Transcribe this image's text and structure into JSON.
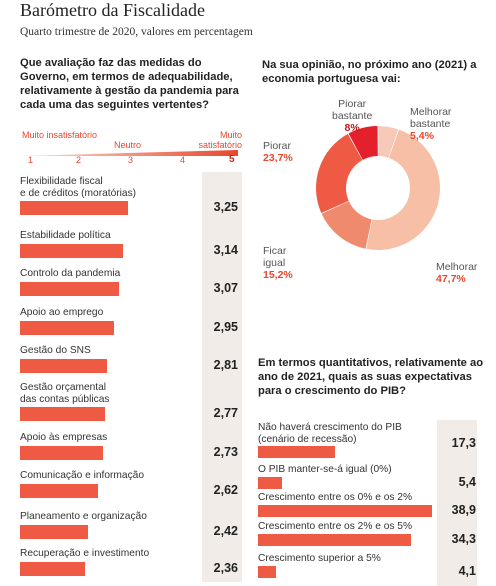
{
  "header": {
    "title": "Barómetro da Fiscalidade",
    "subtitle": "Quarto trimestre de 2020, valores em percentagem"
  },
  "left_panel": {
    "question": "Que avaliação faz das medidas do Governo, em termos de adequabilidade, relativamente à gestão da pandemia para cada uma das seguintes vertentes?",
    "scale": {
      "low_label": "Muito insatisfatório",
      "mid_label": "Neutro",
      "high_label": "Muito satisfatório",
      "numbers": [
        "1",
        "2",
        "3",
        "4",
        "5"
      ]
    }
  },
  "right_panel": {
    "pie_question": "Na sua opinião, no próximo ano (2021) a economia portuguesa vai:",
    "bar_question": "Em termos quantitativos, relativamente ao ano de 2021, quais as suas expectativas para o crescimento do PIB?"
  },
  "colors": {
    "accent": "#ef5a45",
    "dark_red": "#e3202c",
    "value_panel": "#f1ece7",
    "light_salmon": "#f6c2ae"
  },
  "chart_data": [
    {
      "type": "bar",
      "orientation": "horizontal",
      "title": "Que avaliação faz das medidas do Governo, em termos de adequabilidade, relativamente à gestão da pandemia para cada uma das seguintes vertentes?",
      "categories": [
        "Flexibilidade fiscal e de créditos (moratórias)",
        "Estabilidade política",
        "Controlo da pandemia",
        "Apoio ao emprego",
        "Gestão do SNS",
        "Gestão orçamental das contas públicas",
        "Apoio às empresas",
        "Comunicação e informação",
        "Planeamento e organização",
        "Recuperação e investimento"
      ],
      "label_lines": [
        [
          "Flexibilidade fiscal",
          "e de créditos (moratórias)"
        ],
        [
          "Estabilidade política"
        ],
        [
          "Controlo da pandemia"
        ],
        [
          "Apoio ao emprego"
        ],
        [
          "Gestão do SNS"
        ],
        [
          "Gestão orçamental",
          "das contas públicas"
        ],
        [
          "Apoio às empresas"
        ],
        [
          "Comunicação e informação"
        ],
        [
          "Planeamento e organização"
        ],
        [
          "Recuperação e investimento"
        ]
      ],
      "values": [
        3.25,
        3.14,
        3.07,
        2.95,
        2.81,
        2.77,
        2.73,
        2.62,
        2.42,
        2.36
      ],
      "value_labels": [
        "3,25",
        "3,14",
        "3,07",
        "2,95",
        "2,81",
        "2,77",
        "2,73",
        "2,62",
        "2,42",
        "2,36"
      ],
      "xlim": [
        1,
        5
      ]
    },
    {
      "type": "pie",
      "style": "donut",
      "title": "Na sua opinião, no próximo ano (2021) a economia portuguesa vai:",
      "slices": [
        {
          "label": "Melhorar bastante",
          "value": 5.4,
          "value_label": "5,4%",
          "color": "#f6c9b8"
        },
        {
          "label": "Melhorar",
          "value": 47.7,
          "value_label": "47,7%",
          "color": "#f7bfa6"
        },
        {
          "label": "Ficar igual",
          "value": 15.2,
          "value_label": "15,2%",
          "color": "#f08a6c"
        },
        {
          "label": "Piorar",
          "value": 23.7,
          "value_label": "23,7%",
          "color": "#ef5a45"
        },
        {
          "label": "Piorar bastante",
          "value": 8,
          "value_label": "8%",
          "color": "#e3202c"
        }
      ]
    },
    {
      "type": "bar",
      "orientation": "horizontal",
      "title": "Em termos quantitativos, relativamente ao ano de 2021, quais as suas expectativas para o crescimento do PIB?",
      "categories": [
        "Não haverá crescimento do PIB (cenário de recessão)",
        "O PIB manter-se-á igual (0%)",
        "Crescimento entre os 0% e os 2%",
        "Crescimento entre os 2% e os 5%",
        "Crescimento superior a 5%"
      ],
      "label_lines": [
        [
          "Não haverá crescimento do PIB",
          "(cenário de recessão)"
        ],
        [
          "O PIB manter-se-á igual (0%)"
        ],
        [
          "Crescimento entre os 0% e os 2%"
        ],
        [
          "Crescimento entre os 2% e os 5%"
        ],
        [
          "Crescimento superior a 5%"
        ]
      ],
      "values": [
        17.3,
        5.4,
        38.9,
        34.3,
        4.1
      ],
      "value_labels": [
        "17,3",
        "5,4",
        "38,9",
        "34,3",
        "4,1"
      ]
    }
  ]
}
